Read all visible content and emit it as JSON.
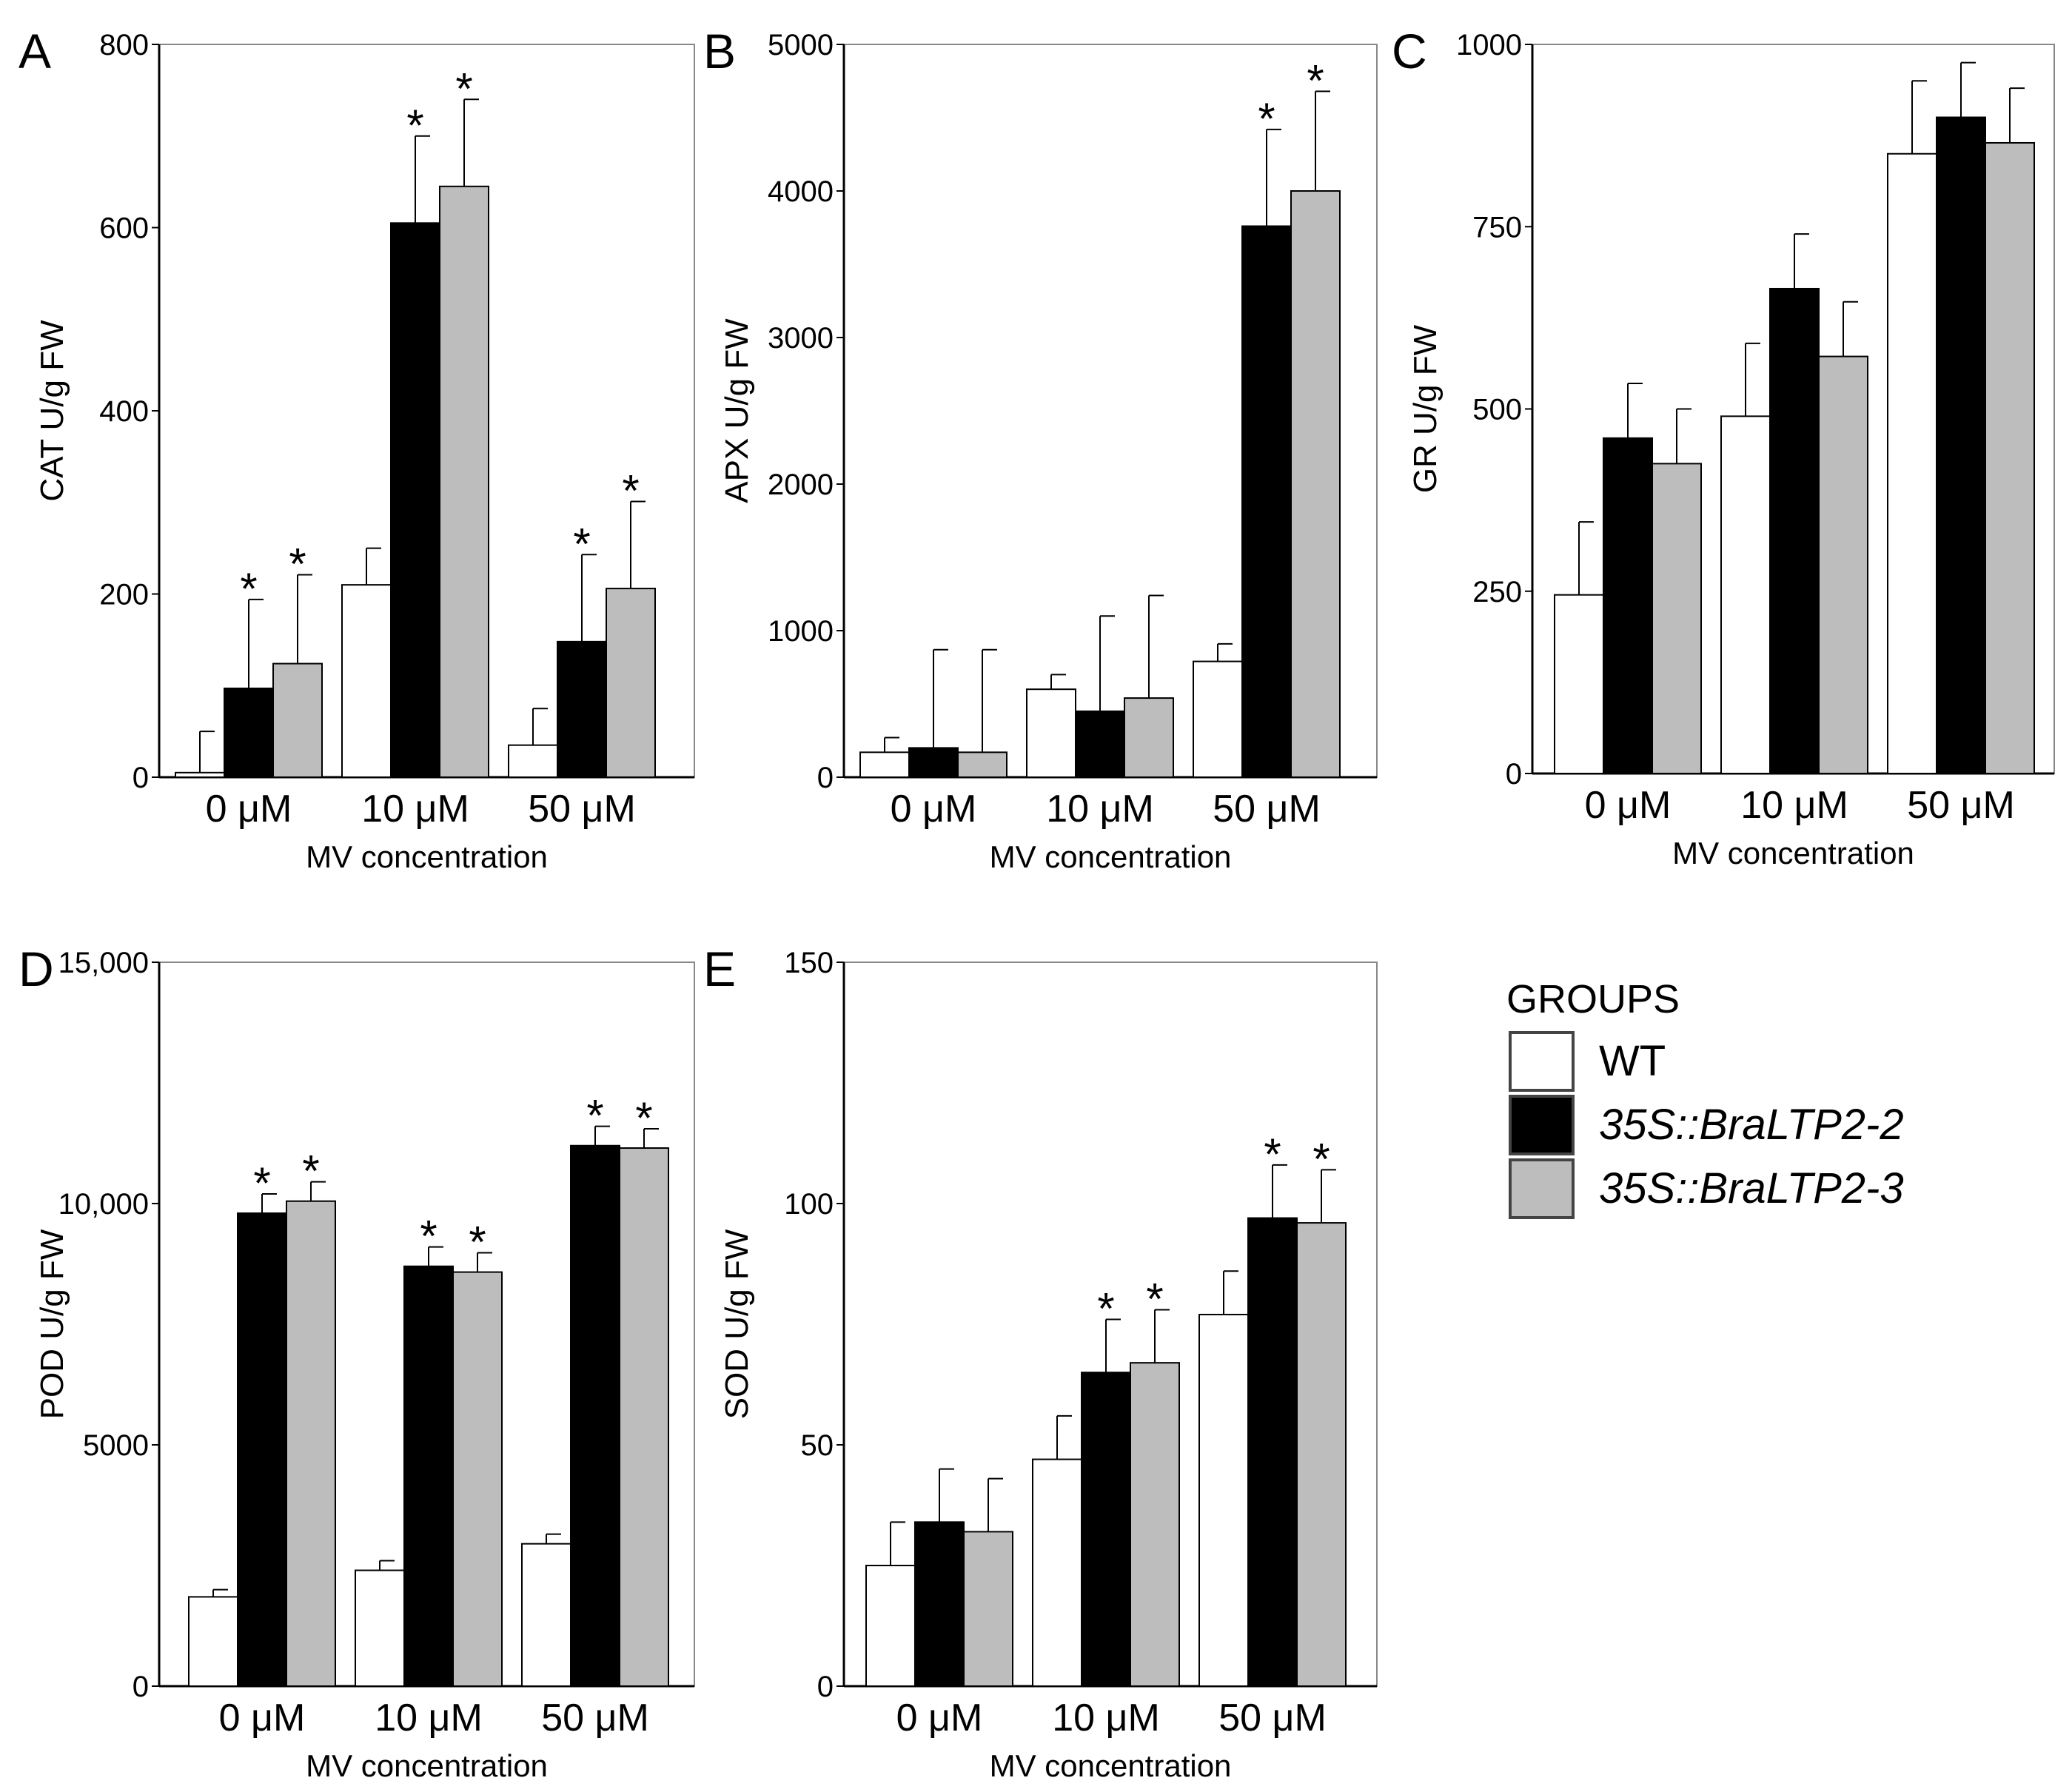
{
  "legend": {
    "title": "GROUPS",
    "items": [
      {
        "label": "WT",
        "color": "#ffffff",
        "italic": false
      },
      {
        "label": "35S::BraLTP2-2",
        "color": "#000000",
        "italic": true
      },
      {
        "label": "35S::BraLTP2-3",
        "color": "#bdbdbd",
        "italic": true
      }
    ]
  },
  "chart_data": [
    {
      "panel": "A",
      "type": "bar",
      "ylabel": "CAT  U/g FW",
      "xlabel": "MV concentration",
      "categories": [
        "0 μM",
        "10 μM",
        "50 μM"
      ],
      "ylim": [
        0,
        800
      ],
      "yticks": [
        0,
        200,
        400,
        600,
        800
      ],
      "series": [
        {
          "name": "WT",
          "values": [
            5,
            210,
            35
          ],
          "errors": [
            45,
            40,
            40
          ],
          "sig": [
            false,
            false,
            false
          ]
        },
        {
          "name": "35S::BraLTP2-2",
          "values": [
            97,
            605,
            148
          ],
          "errors": [
            97,
            95,
            95
          ],
          "sig": [
            true,
            true,
            true
          ]
        },
        {
          "name": "35S::BraLTP2-3",
          "values": [
            124,
            645,
            206
          ],
          "errors": [
            97,
            95,
            95
          ],
          "sig": [
            true,
            true,
            true
          ]
        }
      ]
    },
    {
      "panel": "B",
      "type": "bar",
      "ylabel": "APX U/g FW",
      "xlabel": "MV concentration",
      "categories": [
        "0 μM",
        "10 μM",
        "50 μM"
      ],
      "ylim": [
        0,
        5000
      ],
      "yticks": [
        0,
        1000,
        2000,
        3000,
        4000,
        5000
      ],
      "series": [
        {
          "name": "WT",
          "values": [
            170,
            600,
            790
          ],
          "errors": [
            100,
            100,
            120
          ],
          "sig": [
            false,
            false,
            false
          ]
        },
        {
          "name": "35S::BraLTP2-2",
          "values": [
            200,
            450,
            3760
          ],
          "errors": [
            670,
            650,
            660
          ],
          "sig": [
            false,
            false,
            true
          ]
        },
        {
          "name": "35S::BraLTP2-3",
          "values": [
            170,
            540,
            4000
          ],
          "errors": [
            700,
            700,
            680
          ],
          "sig": [
            false,
            false,
            true
          ]
        }
      ]
    },
    {
      "panel": "C",
      "type": "bar",
      "ylabel": "GR  U/g FW",
      "xlabel": "MV concentration",
      "categories": [
        "0 μM",
        "10 μM",
        "50 μM"
      ],
      "ylim": [
        0,
        1000
      ],
      "yticks": [
        0,
        250,
        500,
        750,
        1000
      ],
      "series": [
        {
          "name": "WT",
          "values": [
            245,
            490,
            850
          ],
          "errors": [
            100,
            100,
            100
          ],
          "sig": [
            false,
            false,
            false
          ]
        },
        {
          "name": "35S::BraLTP2-2",
          "values": [
            460,
            665,
            900
          ],
          "errors": [
            75,
            75,
            75
          ],
          "sig": [
            false,
            false,
            false
          ]
        },
        {
          "name": "35S::BraLTP2-3",
          "values": [
            425,
            572,
            865
          ],
          "errors": [
            75,
            75,
            75
          ],
          "sig": [
            false,
            false,
            false
          ]
        }
      ]
    },
    {
      "panel": "D",
      "type": "bar",
      "ylabel": "POD  U/g FW",
      "xlabel": "MV concentration",
      "categories": [
        "0 μM",
        "10 μM",
        "50 μM"
      ],
      "ylim": [
        0,
        15000
      ],
      "yticks": [
        0,
        5000,
        10000,
        15000
      ],
      "yticklabels": [
        "0",
        "5000",
        "10,000",
        "15,000"
      ],
      "series": [
        {
          "name": "WT",
          "values": [
            1850,
            2400,
            2950
          ],
          "errors": [
            150,
            200,
            200
          ],
          "sig": [
            false,
            false,
            false
          ]
        },
        {
          "name": "35S::BraLTP2-2",
          "values": [
            9800,
            8700,
            11200
          ],
          "errors": [
            400,
            400,
            400
          ],
          "sig": [
            true,
            true,
            true
          ]
        },
        {
          "name": "35S::BraLTP2-3",
          "values": [
            10050,
            8580,
            11150
          ],
          "errors": [
            400,
            400,
            400
          ],
          "sig": [
            true,
            true,
            true
          ]
        }
      ]
    },
    {
      "panel": "E",
      "type": "bar",
      "ylabel": "SOD  U/g FW",
      "xlabel": "MV concentration",
      "categories": [
        "0 μM",
        "10 μM",
        "50 μM"
      ],
      "ylim": [
        0,
        150
      ],
      "yticks": [
        0,
        50,
        100,
        150
      ],
      "series": [
        {
          "name": "WT",
          "values": [
            25,
            47,
            77
          ],
          "errors": [
            9,
            9,
            9
          ],
          "sig": [
            false,
            false,
            false
          ]
        },
        {
          "name": "35S::BraLTP2-2",
          "values": [
            34,
            65,
            97
          ],
          "errors": [
            11,
            11,
            11
          ],
          "sig": [
            false,
            true,
            true
          ]
        },
        {
          "name": "35S::BraLTP2-3",
          "values": [
            32,
            67,
            96
          ],
          "errors": [
            11,
            11,
            11
          ],
          "sig": [
            false,
            true,
            true
          ]
        }
      ]
    }
  ]
}
